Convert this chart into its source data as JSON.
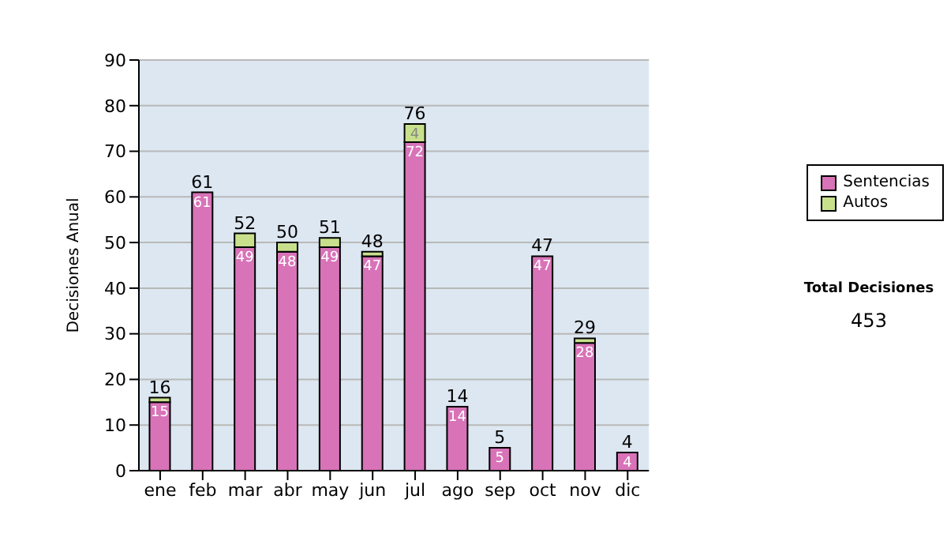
{
  "chart_data": {
    "type": "bar",
    "stacked": true,
    "ylabel": "Decisiones Anual",
    "categories": [
      "ene",
      "feb",
      "mar",
      "abr",
      "may",
      "jun",
      "jul",
      "ago",
      "sep",
      "oct",
      "nov",
      "dic"
    ],
    "series": [
      {
        "name": "Sentencias",
        "color": "#d873b8",
        "values": [
          15,
          61,
          49,
          48,
          49,
          47,
          72,
          14,
          5,
          47,
          28,
          4
        ],
        "value_labels": [
          "15",
          "61",
          "49",
          "48",
          "49",
          "47",
          "72",
          "14",
          "5",
          "47",
          "28",
          "4"
        ]
      },
      {
        "name": "Autos",
        "color": "#c8e08c",
        "values": [
          1,
          0,
          3,
          2,
          2,
          1,
          4,
          0,
          0,
          0,
          1,
          0
        ],
        "value_labels": [
          null,
          null,
          null,
          null,
          null,
          null,
          "4",
          null,
          null,
          null,
          null,
          null
        ]
      }
    ],
    "totals": [
      "16",
      "61",
      "52",
      "50",
      "51",
      "48",
      "76",
      "14",
      "5",
      "47",
      "29",
      "4"
    ],
    "ylim": [
      0,
      90
    ],
    "yticks": [
      0,
      10,
      20,
      30,
      40,
      50,
      60,
      70,
      80,
      90
    ],
    "grid": "y",
    "legend": "right",
    "annotations": [
      "Total Decisiones",
      "453"
    ]
  }
}
